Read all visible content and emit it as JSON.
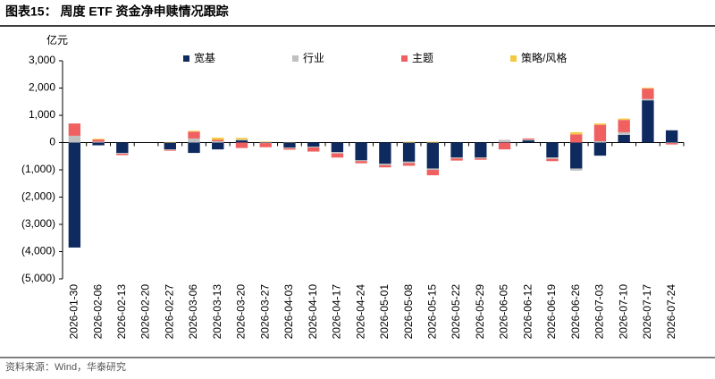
{
  "chart_data": {
    "type": "stacked-bar",
    "title": "图表15：  周度 ETF 资金净申赎情况跟踪",
    "y_label": "亿元",
    "source": "资料来源：Wind，华泰研究",
    "categories": [
      "2026-01-30",
      "2026-02-06",
      "2026-02-13",
      "2026-02-20",
      "2026-02-27",
      "2026-03-06",
      "2026-03-13",
      "2026-03-20",
      "2026-03-27",
      "2026-04-03",
      "2026-04-10",
      "2026-04-17",
      "2026-04-24",
      "2026-05-01",
      "2026-05-08",
      "2026-05-15",
      "2026-05-22",
      "2026-05-29",
      "2026-06-05",
      "2026-06-12",
      "2026-06-19",
      "2026-06-26",
      "2026-07-03",
      "2026-07-10",
      "2026-07-17",
      "2026-07-24"
    ],
    "series": [
      {
        "name": "宽基",
        "color": "#0f2a5e",
        "values": [
          -3850,
          -100,
          -380,
          0,
          -250,
          -380,
          -250,
          80,
          -20,
          -180,
          -150,
          -350,
          -650,
          -780,
          -700,
          -950,
          -550,
          -550,
          20,
          80,
          -550,
          -950,
          -480,
          280,
          1550,
          450
        ]
      },
      {
        "name": "行业",
        "color": "#c0c0c0",
        "values": [
          250,
          30,
          -30,
          0,
          -20,
          150,
          50,
          30,
          20,
          -30,
          -30,
          -50,
          -30,
          -50,
          -50,
          -50,
          -30,
          -30,
          80,
          30,
          -50,
          -80,
          50,
          100,
          50,
          -20
        ]
      },
      {
        "name": "主题",
        "color": "#f06060",
        "values": [
          450,
          80,
          -50,
          0,
          -30,
          250,
          50,
          -200,
          -150,
          -50,
          -150,
          -150,
          -80,
          -80,
          -100,
          -200,
          -80,
          -50,
          -250,
          40,
          -80,
          300,
          600,
          450,
          380,
          -50
        ]
      },
      {
        "name": "策略/风格",
        "color": "#f5c842",
        "values": [
          0,
          30,
          0,
          0,
          20,
          30,
          80,
          60,
          20,
          10,
          0,
          0,
          0,
          0,
          30,
          30,
          0,
          0,
          0,
          0,
          0,
          80,
          50,
          50,
          30,
          0
        ]
      }
    ],
    "ylim": [
      -5000,
      3000
    ],
    "yticks": [
      {
        "value": -5000,
        "label": "(5,000)"
      },
      {
        "value": -4000,
        "label": "(4,000)"
      },
      {
        "value": -3000,
        "label": "(3,000)"
      },
      {
        "value": -2000,
        "label": "(2,000)"
      },
      {
        "value": -1000,
        "label": "(1,000)"
      },
      0,
      {
        "value": 1000,
        "label": "1,000"
      },
      {
        "value": 2000,
        "label": "2,000"
      },
      {
        "value": 3000,
        "label": "3,000"
      }
    ],
    "legend": "top"
  }
}
